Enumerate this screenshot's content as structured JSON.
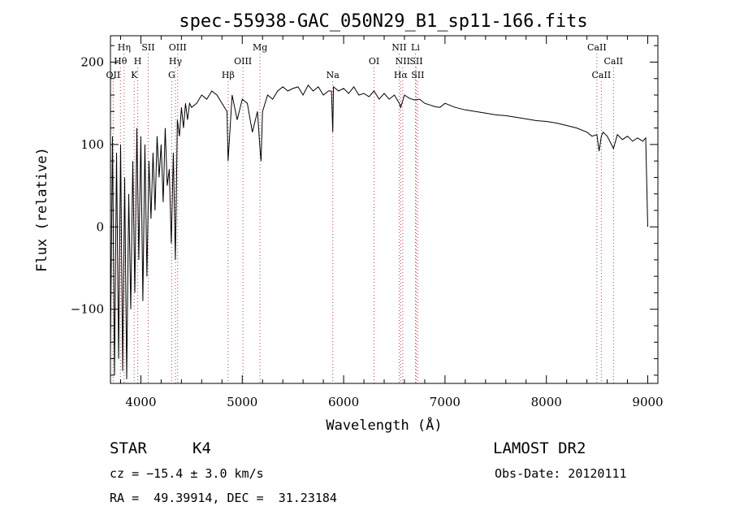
{
  "chart_data": {
    "type": "line",
    "title": "spec-55938-GAC_050N29_B1_sp11-166.fits",
    "xlabel": "Wavelength (Å)",
    "ylabel": "Flux (relative)",
    "xlim": [
      3700,
      9100
    ],
    "ylim": [
      -190,
      232
    ],
    "x_ticks": [
      4000,
      5000,
      6000,
      7000,
      8000,
      9000
    ],
    "x_tick_labels": [
      "4000",
      "5000",
      "6000",
      "7000",
      "8000",
      "9000"
    ],
    "y_ticks": [
      -100,
      0,
      100,
      200
    ],
    "y_tick_labels": [
      "−100",
      "0",
      "100",
      "200"
    ],
    "grid": false,
    "series": [
      {
        "x": [
          3700,
          3720,
          3740,
          3760,
          3780,
          3800,
          3820,
          3840,
          3860,
          3880,
          3900,
          3920,
          3940,
          3960,
          3980,
          4000,
          4020,
          4040,
          4060,
          4080,
          4100,
          4120,
          4140,
          4160,
          4180,
          4200,
          4220,
          4240,
          4260,
          4280,
          4300,
          4320,
          4340,
          4360,
          4380,
          4400,
          4420,
          4440,
          4460,
          4480,
          4500,
          4550,
          4600,
          4650,
          4700,
          4750,
          4800,
          4850,
          4860,
          4900,
          4950,
          5000,
          5050,
          5100,
          5150,
          5175,
          5185,
          5200,
          5250,
          5300,
          5350,
          5400,
          5450,
          5500,
          5550,
          5600,
          5650,
          5700,
          5750,
          5800,
          5850,
          5880,
          5893,
          5900,
          5950,
          6000,
          6050,
          6100,
          6150,
          6200,
          6250,
          6300,
          6350,
          6400,
          6450,
          6500,
          6550,
          6563,
          6580,
          6600,
          6650,
          6700,
          6750,
          6800,
          6850,
          6900,
          6950,
          7000,
          7100,
          7200,
          7300,
          7400,
          7500,
          7600,
          7700,
          7800,
          7900,
          8000,
          8100,
          8200,
          8300,
          8400,
          8450,
          8498,
          8520,
          8542,
          8560,
          8600,
          8662,
          8700,
          8750,
          8800,
          8850,
          8900,
          8950,
          8980,
          9000
        ],
        "y": [
          -150,
          110,
          -180,
          90,
          -160,
          100,
          -175,
          60,
          -185,
          40,
          -100,
          80,
          -80,
          120,
          -40,
          110,
          -90,
          100,
          -60,
          80,
          10,
          90,
          20,
          110,
          60,
          100,
          30,
          120,
          50,
          70,
          -20,
          90,
          -40,
          130,
          110,
          145,
          120,
          150,
          130,
          150,
          145,
          150,
          160,
          155,
          165,
          160,
          150,
          140,
          80,
          160,
          130,
          155,
          150,
          115,
          140,
          95,
          80,
          140,
          160,
          155,
          165,
          170,
          165,
          168,
          170,
          160,
          172,
          165,
          170,
          160,
          165,
          165,
          115,
          170,
          165,
          168,
          162,
          170,
          160,
          162,
          158,
          165,
          155,
          162,
          155,
          160,
          150,
          145,
          152,
          160,
          156,
          154,
          155,
          150,
          148,
          146,
          145,
          150,
          145,
          142,
          140,
          138,
          136,
          135,
          133,
          131,
          129,
          128,
          126,
          123,
          120,
          115,
          110,
          112,
          92,
          110,
          115,
          110,
          95,
          112,
          106,
          110,
          104,
          108,
          104,
          108,
          0
        ]
      }
    ],
    "line_annotations": [
      {
        "label": "OII",
        "x": 3727,
        "row": 3
      },
      {
        "label": "Hθ",
        "x": 3798,
        "row": 2
      },
      {
        "label": "Hη",
        "x": 3835,
        "row": 1
      },
      {
        "label": "K",
        "x": 3934,
        "row": 3
      },
      {
        "label": "H",
        "x": 3969,
        "row": 2
      },
      {
        "label": "SII",
        "x": 4072,
        "row": 1
      },
      {
        "label": "G",
        "x": 4304,
        "row": 3
      },
      {
        "label": "Hγ",
        "x": 4341,
        "row": 2
      },
      {
        "label": "OIII",
        "x": 4363,
        "row": 1
      },
      {
        "label": "Hβ",
        "x": 4861,
        "row": 3
      },
      {
        "label": "OIII",
        "x": 5007,
        "row": 2
      },
      {
        "label": "Mg",
        "x": 5175,
        "row": 1
      },
      {
        "label": "Na",
        "x": 5893,
        "row": 3
      },
      {
        "label": "OI",
        "x": 6300,
        "row": 2
      },
      {
        "label": "NII",
        "x": 6548,
        "row": 1
      },
      {
        "label": "Hα",
        "x": 6563,
        "row": 3
      },
      {
        "label": "NII",
        "x": 6583,
        "row": 2
      },
      {
        "label": "Li",
        "x": 6708,
        "row": 1
      },
      {
        "label": "SII",
        "x": 6716,
        "row": 2
      },
      {
        "label": "SII",
        "x": 6731,
        "row": 3
      },
      {
        "label": "CaII",
        "x": 8498,
        "row": 1
      },
      {
        "label": "CaII",
        "x": 8542,
        "row": 3
      },
      {
        "label": "CaII",
        "x": 8662,
        "row": 2
      }
    ]
  },
  "info": {
    "object_type": "STAR",
    "subclass": "K4",
    "survey": "LAMOST DR2",
    "velocity": "cz = −15.4 ± 3.0 km/s",
    "obs_date": "Obs-Date: 20120111",
    "coords": "RA =  49.39914, DEC =  31.23184"
  }
}
